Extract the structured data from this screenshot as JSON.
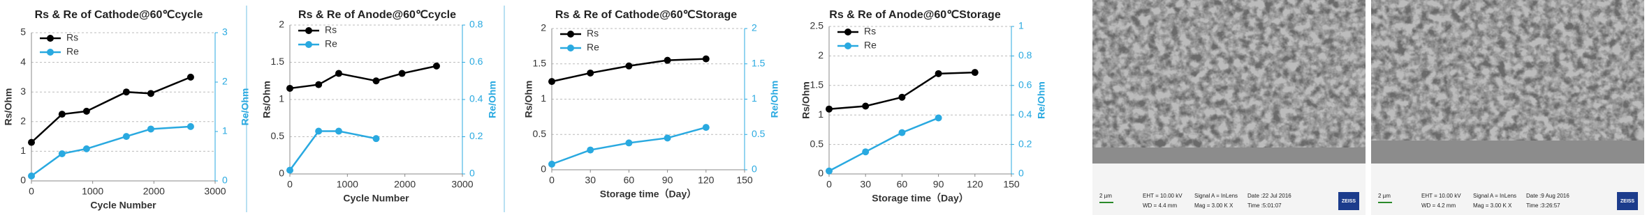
{
  "chart_data": [
    {
      "type": "line",
      "title": "Rs & Re of Cathode@60℃cycle",
      "xlabel": "Cycle Number",
      "ylabel": "Rs/Ohm",
      "y2label": "Re/Ohm",
      "x": [
        0,
        500,
        900,
        1550,
        1950,
        2600
      ],
      "xlim": [
        0,
        3000
      ],
      "xticks": [
        0,
        1000,
        2000,
        3000
      ],
      "ylim": [
        0,
        5
      ],
      "yticks": [
        0,
        1,
        2,
        3,
        4,
        5
      ],
      "y2lim": [
        0,
        3
      ],
      "y2ticks": [
        0,
        1,
        2,
        3
      ],
      "grid": true,
      "legend": "upper-left",
      "series": [
        {
          "name": "Rs",
          "color": "#000000",
          "values": [
            1.3,
            2.25,
            2.35,
            3.0,
            2.95,
            3.5
          ]
        },
        {
          "name": "Re",
          "color": "#29a9e0",
          "axis": "y2",
          "values": [
            0.1,
            0.55,
            0.65,
            0.9,
            1.05,
            1.1
          ]
        }
      ]
    },
    {
      "type": "line",
      "title": "Rs & Re of Anode@60℃cycle",
      "xlabel": "Cycle Number",
      "ylabel": "Rs/Ohm",
      "y2label": "Re/Ohm",
      "x": [
        0,
        500,
        850,
        1500,
        1950,
        2550
      ],
      "xlim": [
        0,
        3000
      ],
      "xticks": [
        0,
        1000,
        2000,
        3000
      ],
      "ylim": [
        0,
        2
      ],
      "yticks": [
        0,
        0.5,
        1,
        1.5,
        2
      ],
      "y2lim": [
        0,
        0.8
      ],
      "y2ticks": [
        0,
        0.2,
        0.4,
        0.6,
        0.8
      ],
      "grid": true,
      "legend": "upper-left",
      "series": [
        {
          "name": "Rs",
          "color": "#000000",
          "values": [
            1.15,
            1.2,
            1.35,
            1.25,
            1.35,
            1.45
          ]
        },
        {
          "name": "Re",
          "color": "#29a9e0",
          "axis": "y2",
          "values": [
            0.02,
            0.23,
            0.23,
            0.19,
            null,
            null
          ]
        }
      ]
    },
    {
      "type": "line",
      "title": "Rs & Re of Cathode@60℃Storage",
      "xlabel": "Storage time（Day）",
      "ylabel": "Rs/Ohm",
      "y2label": "Re/Ohm",
      "x": [
        0,
        30,
        60,
        90,
        120
      ],
      "xlim": [
        0,
        150
      ],
      "xticks": [
        0,
        30,
        60,
        90,
        120,
        150
      ],
      "ylim": [
        0,
        2
      ],
      "yticks": [
        0,
        0.5,
        1,
        1.5,
        2
      ],
      "y2lim": [
        0,
        2
      ],
      "y2ticks": [
        0,
        0.5,
        1,
        1.5,
        2
      ],
      "grid": true,
      "legend": "upper-left",
      "series": [
        {
          "name": "Rs",
          "color": "#000000",
          "values": [
            1.25,
            1.37,
            1.47,
            1.55,
            1.57
          ]
        },
        {
          "name": "Re",
          "color": "#29a9e0",
          "axis": "y2",
          "values": [
            0.08,
            0.28,
            0.38,
            0.45,
            0.6
          ]
        }
      ]
    },
    {
      "type": "line",
      "title": "Rs & Re of Anode@60℃Storage",
      "xlabel": "Storage time（Day）",
      "ylabel": "Rs/Ohm",
      "y2label": "Re/Ohm",
      "x": [
        0,
        30,
        60,
        90,
        120
      ],
      "xlim": [
        0,
        150
      ],
      "xticks": [
        0,
        30,
        60,
        90,
        120,
        150
      ],
      "ylim": [
        0,
        2.5
      ],
      "yticks": [
        0,
        0.5,
        1,
        1.5,
        2,
        2.5
      ],
      "y2lim": [
        0,
        1
      ],
      "y2ticks": [
        0,
        0.2,
        0.4,
        0.6,
        0.8,
        1
      ],
      "grid": true,
      "legend": "upper-left",
      "series": [
        {
          "name": "Rs",
          "color": "#000000",
          "values": [
            1.1,
            1.15,
            1.3,
            1.7,
            1.72
          ]
        },
        {
          "name": "Re",
          "color": "#29a9e0",
          "axis": "y2",
          "values": [
            0.02,
            0.15,
            0.28,
            0.38,
            null
          ]
        }
      ]
    }
  ],
  "images": [
    {
      "labels": [
        "2 µm",
        "EHT = 10.00 kV",
        "WD = 4.4 mm",
        "Signal A = InLens",
        "Mag = 3.00 K X",
        "Date :22 Jul 2016",
        "Time :5:01:07",
        "ZEISS"
      ]
    },
    {
      "labels": [
        "2 µm",
        "EHT = 10.00 kV",
        "WD = 4.2 mm",
        "Signal A = InLens",
        "Mag = 3.00 K X",
        "Date :9 Aug 2016",
        "Time :3:26:57",
        "ZEISS"
      ]
    }
  ]
}
